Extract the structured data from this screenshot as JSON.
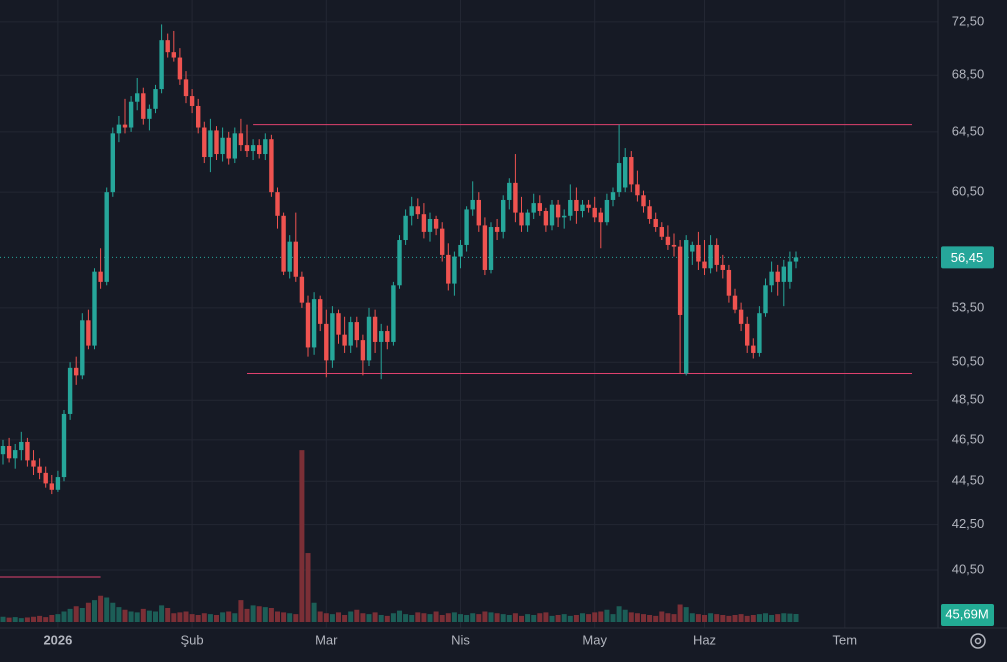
{
  "chart_data": {
    "type": "candlestick",
    "scale": "log",
    "grid": true,
    "up_color": "#26a69a",
    "down_color": "#ef5350",
    "up_volume_color": "#1c5e57",
    "down_volume_color": "#7b2f36",
    "level_color": "#e0416e",
    "ylim": [
      38.2,
      74.2
    ],
    "yticks": [
      {
        "value": 72.5,
        "label": "72,50"
      },
      {
        "value": 68.5,
        "label": "68,50"
      },
      {
        "value": 64.5,
        "label": "64,50"
      },
      {
        "value": 60.5,
        "label": "60,50"
      },
      {
        "value": 53.5,
        "label": "53,50"
      },
      {
        "value": 50.5,
        "label": "50,50"
      },
      {
        "value": 48.5,
        "label": "48,50"
      },
      {
        "value": 46.5,
        "label": "46,50"
      },
      {
        "value": 44.5,
        "label": "44,50"
      },
      {
        "value": 42.5,
        "label": "42,50"
      },
      {
        "value": 40.5,
        "label": "40,50"
      }
    ],
    "categories": [
      null,
      null,
      null,
      null,
      null,
      null,
      null,
      null,
      null,
      "2026",
      null,
      null,
      null,
      null,
      null,
      null,
      null,
      null,
      null,
      null,
      null,
      null,
      null,
      null,
      null,
      null,
      null,
      null,
      null,
      null,
      null,
      "Şub",
      null,
      null,
      null,
      null,
      null,
      null,
      null,
      null,
      null,
      null,
      null,
      null,
      null,
      null,
      null,
      null,
      null,
      null,
      null,
      null,
      null,
      "Mar",
      null,
      null,
      null,
      null,
      null,
      null,
      null,
      null,
      null,
      null,
      null,
      null,
      null,
      null,
      null,
      null,
      null,
      null,
      null,
      null,
      null,
      "Nis",
      null,
      null,
      null,
      null,
      null,
      null,
      null,
      null,
      null,
      null,
      null,
      null,
      null,
      null,
      null,
      null,
      null,
      null,
      null,
      null,
      null,
      "May",
      null,
      null,
      null,
      null,
      null,
      null,
      null,
      null,
      null,
      null,
      null,
      null,
      null,
      null,
      null,
      null,
      null,
      "Haz",
      null,
      null,
      null,
      null,
      null,
      null,
      null,
      null,
      null,
      null,
      null,
      null,
      null,
      null,
      null,
      null,
      null,
      null,
      null,
      null,
      null,
      null,
      "Tem"
    ],
    "open": [
      45.8,
      46.2,
      45.6,
      46.0,
      46.4,
      45.5,
      45.2,
      44.9,
      44.4,
      44.1,
      44.7,
      47.8,
      50.2,
      49.8,
      52.8,
      51.4,
      55.6,
      55.0,
      60.5,
      64.4,
      65.0,
      64.8,
      66.6,
      67.2,
      65.4,
      66.1,
      67.5,
      71.1,
      70.2,
      69.8,
      68.2,
      67.0,
      66.3,
      64.8,
      62.8,
      64.6,
      63.0,
      64.1,
      62.7,
      64.4,
      63.6,
      63.2,
      63.6,
      63.0,
      64.0,
      60.5,
      59.0,
      55.6,
      57.4,
      55.3,
      53.8,
      51.3,
      54.0,
      52.6,
      50.6,
      53.2,
      52.0,
      51.4,
      52.7,
      51.7,
      50.6,
      53.0,
      51.6,
      52.2,
      51.6,
      54.8,
      57.5,
      59.0,
      59.6,
      59.1,
      58.0,
      58.8,
      58.2,
      56.6,
      54.9,
      56.5,
      57.2,
      59.4,
      60.0,
      58.4,
      55.7,
      58.3,
      58.0,
      60.0,
      61.1,
      59.2,
      58.4,
      59.2,
      59.8,
      59.3,
      58.4,
      59.7,
      58.9,
      59.0,
      60.0,
      59.3,
      59.7,
      59.5,
      59.2,
      58.6,
      60.0,
      60.5,
      60.8,
      62.8,
      61.0,
      60.3,
      59.6,
      58.8,
      58.3,
      57.7,
      57.2,
      57.1,
      49.9,
      56.8,
      57.2,
      56.2,
      55.8,
      57.2,
      56.0,
      55.7,
      54.2,
      53.4,
      52.6,
      51.4,
      51.0,
      53.2,
      54.8,
      55.6,
      55.0,
      55.0,
      56.2,
      null,
      null,
      null,
      null,
      null,
      null,
      null,
      null
    ],
    "high": [
      46.5,
      46.6,
      46.3,
      46.9,
      46.6,
      46.0,
      45.6,
      45.2,
      44.8,
      45.0,
      48.0,
      50.5,
      50.8,
      53.2,
      53.4,
      55.8,
      57.0,
      60.8,
      64.8,
      65.6,
      66.8,
      67.0,
      68.3,
      67.6,
      66.4,
      67.8,
      72.3,
      71.6,
      71.8,
      70.5,
      68.8,
      67.5,
      66.8,
      65.2,
      65.4,
      64.9,
      64.8,
      64.5,
      64.8,
      65.4,
      65.0,
      64.0,
      64.0,
      64.4,
      64.3,
      60.8,
      59.2,
      57.8,
      59.2,
      55.6,
      54.2,
      54.4,
      54.2,
      53.4,
      53.6,
      53.4,
      53.0,
      53.0,
      53.0,
      52.0,
      53.5,
      53.4,
      52.6,
      52.5,
      55.0,
      57.8,
      59.4,
      60.2,
      60.1,
      59.8,
      59.2,
      59.0,
      58.6,
      57.3,
      56.8,
      57.5,
      59.6,
      61.2,
      60.5,
      58.9,
      58.6,
      58.8,
      60.3,
      61.4,
      63.0,
      60.2,
      59.4,
      60.4,
      60.3,
      59.5,
      60.0,
      60.0,
      59.4,
      61.0,
      60.8,
      60.0,
      60.0,
      60.2,
      59.5,
      60.4,
      60.8,
      65.0,
      63.4,
      63.2,
      61.9,
      60.6,
      60.0,
      59.2,
      58.6,
      58.4,
      57.9,
      57.5,
      57.8,
      57.4,
      58.0,
      57.5,
      57.8,
      57.6,
      56.6,
      56.0,
      54.6,
      53.8,
      53.0,
      51.8,
      53.6,
      55.2,
      56.2,
      56.0,
      56.3,
      56.8,
      56.8,
      null,
      null,
      null,
      null,
      null,
      null,
      null,
      null
    ],
    "low": [
      45.3,
      45.4,
      45.1,
      45.5,
      45.2,
      44.8,
      44.6,
      44.2,
      43.9,
      44.0,
      44.5,
      47.5,
      49.3,
      49.6,
      51.2,
      51.2,
      54.6,
      54.8,
      60.2,
      63.8,
      64.4,
      64.5,
      66.0,
      65.0,
      64.6,
      65.8,
      67.2,
      69.8,
      69.5,
      67.8,
      66.5,
      65.8,
      64.4,
      62.4,
      61.8,
      62.6,
      62.5,
      62.3,
      62.4,
      63.2,
      62.8,
      62.6,
      62.7,
      62.6,
      60.2,
      58.2,
      55.4,
      55.2,
      55.0,
      53.5,
      50.8,
      50.9,
      52.2,
      49.7,
      50.2,
      51.5,
      51.0,
      51.0,
      51.3,
      49.8,
      50.3,
      51.0,
      49.6,
      51.2,
      51.4,
      54.6,
      57.2,
      58.4,
      58.8,
      57.6,
      57.4,
      57.8,
      56.2,
      54.5,
      54.2,
      55.8,
      56.8,
      59.0,
      58.0,
      55.4,
      55.5,
      57.5,
      57.6,
      59.4,
      58.6,
      58.0,
      58.0,
      58.8,
      59.0,
      58.0,
      58.1,
      58.3,
      58.2,
      58.7,
      58.5,
      58.9,
      59.2,
      58.6,
      57.0,
      58.4,
      59.6,
      60.2,
      60.5,
      60.5,
      59.9,
      59.2,
      58.5,
      58.0,
      57.5,
      56.9,
      56.5,
      49.9,
      49.8,
      56.0,
      55.7,
      55.4,
      55.5,
      55.6,
      55.2,
      53.8,
      53.2,
      52.2,
      51.0,
      50.7,
      50.8,
      53.0,
      54.4,
      54.2,
      53.6,
      54.6,
      55.8,
      null,
      null,
      null,
      null,
      null,
      null,
      null,
      null
    ],
    "close": [
      46.2,
      45.6,
      46.0,
      46.4,
      45.5,
      45.2,
      44.9,
      44.4,
      44.1,
      44.7,
      47.8,
      50.2,
      49.8,
      52.8,
      51.4,
      55.6,
      55.0,
      60.5,
      64.4,
      65.0,
      64.8,
      66.6,
      67.2,
      65.4,
      66.1,
      67.5,
      71.1,
      70.2,
      69.8,
      68.2,
      67.0,
      66.3,
      64.8,
      62.8,
      64.6,
      63.0,
      64.1,
      62.7,
      64.4,
      63.6,
      63.2,
      63.6,
      63.0,
      64.0,
      60.5,
      59.0,
      55.6,
      57.4,
      55.3,
      53.8,
      51.3,
      54.0,
      52.6,
      50.6,
      53.2,
      52.0,
      51.4,
      52.7,
      51.7,
      50.6,
      53.0,
      51.6,
      52.2,
      51.6,
      54.8,
      57.5,
      59.0,
      59.6,
      59.1,
      58.0,
      58.8,
      58.2,
      56.6,
      54.9,
      56.5,
      57.2,
      59.4,
      60.0,
      58.4,
      55.7,
      58.3,
      58.0,
      60.0,
      61.1,
      59.2,
      58.4,
      59.2,
      59.8,
      59.3,
      58.4,
      59.7,
      58.9,
      59.0,
      60.0,
      59.3,
      59.7,
      59.5,
      58.9,
      58.6,
      60.0,
      60.5,
      62.4,
      62.8,
      61.0,
      60.3,
      59.6,
      58.8,
      58.3,
      57.7,
      57.2,
      57.1,
      53.1,
      57.5,
      57.2,
      56.2,
      55.8,
      57.2,
      56.0,
      55.7,
      54.2,
      53.4,
      52.6,
      51.4,
      51.0,
      53.2,
      54.8,
      55.6,
      55.0,
      55.9,
      56.2,
      56.45,
      null,
      null,
      null,
      null,
      null,
      null,
      null,
      null
    ],
    "last_price_label": "56,45",
    "volume": {
      "ylim": [
        0,
        1040
      ],
      "values": [
        30,
        25,
        28,
        22,
        26,
        30,
        35,
        28,
        40,
        45,
        60,
        75,
        90,
        80,
        110,
        125,
        150,
        140,
        110,
        85,
        70,
        60,
        55,
        75,
        65,
        60,
        95,
        80,
        50,
        55,
        60,
        45,
        40,
        50,
        45,
        40,
        55,
        60,
        50,
        125,
        75,
        95,
        90,
        85,
        80,
        60,
        55,
        50,
        45,
        982,
        394,
        110,
        60,
        50,
        45,
        55,
        40,
        60,
        70,
        50,
        45,
        55,
        40,
        35,
        50,
        65,
        45,
        40,
        55,
        50,
        45,
        60,
        40,
        50,
        55,
        45,
        40,
        50,
        45,
        60,
        55,
        50,
        45,
        40,
        50,
        35,
        45,
        40,
        50,
        55,
        35,
        40,
        45,
        35,
        40,
        50,
        45,
        55,
        60,
        70,
        45,
        90,
        70,
        55,
        50,
        45,
        40,
        35,
        60,
        50,
        45,
        100,
        85,
        50,
        45,
        40,
        50,
        45,
        40,
        35,
        40,
        45,
        35,
        40,
        45,
        50,
        40,
        45,
        50,
        48,
        45.69,
        null,
        null,
        null,
        null,
        null,
        null,
        null,
        null
      ],
      "last_label": "45,69M"
    },
    "levels": [
      {
        "value": 65.0,
        "from": 41
      },
      {
        "value": 49.9,
        "from": 40
      },
      {
        "value": 40.2,
        "from": 0,
        "to": 16
      }
    ]
  }
}
